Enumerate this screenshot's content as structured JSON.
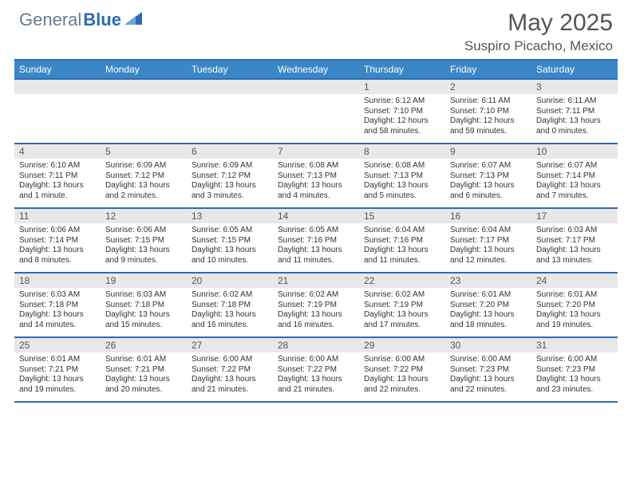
{
  "brand": {
    "general": "General",
    "blue": "Blue"
  },
  "title": {
    "month": "May 2025",
    "location": "Suspiro Picacho, Mexico"
  },
  "day_headers": [
    "Sunday",
    "Monday",
    "Tuesday",
    "Wednesday",
    "Thursday",
    "Friday",
    "Saturday"
  ],
  "colors": {
    "header_bg": "#3a87c7",
    "border": "#2d6bb0",
    "strip_bg": "#e8e8e8",
    "text": "#333333"
  },
  "weeks": [
    {
      "dates": [
        "",
        "",
        "",
        "",
        "1",
        "2",
        "3"
      ],
      "cells": [
        null,
        null,
        null,
        null,
        {
          "sunrise": "Sunrise: 6:12 AM",
          "sunset": "Sunset: 7:10 PM",
          "daylight": "Daylight: 12 hours and 58 minutes."
        },
        {
          "sunrise": "Sunrise: 6:11 AM",
          "sunset": "Sunset: 7:10 PM",
          "daylight": "Daylight: 12 hours and 59 minutes."
        },
        {
          "sunrise": "Sunrise: 6:11 AM",
          "sunset": "Sunset: 7:11 PM",
          "daylight": "Daylight: 13 hours and 0 minutes."
        }
      ]
    },
    {
      "dates": [
        "4",
        "5",
        "6",
        "7",
        "8",
        "9",
        "10"
      ],
      "cells": [
        {
          "sunrise": "Sunrise: 6:10 AM",
          "sunset": "Sunset: 7:11 PM",
          "daylight": "Daylight: 13 hours and 1 minute."
        },
        {
          "sunrise": "Sunrise: 6:09 AM",
          "sunset": "Sunset: 7:12 PM",
          "daylight": "Daylight: 13 hours and 2 minutes."
        },
        {
          "sunrise": "Sunrise: 6:09 AM",
          "sunset": "Sunset: 7:12 PM",
          "daylight": "Daylight: 13 hours and 3 minutes."
        },
        {
          "sunrise": "Sunrise: 6:08 AM",
          "sunset": "Sunset: 7:13 PM",
          "daylight": "Daylight: 13 hours and 4 minutes."
        },
        {
          "sunrise": "Sunrise: 6:08 AM",
          "sunset": "Sunset: 7:13 PM",
          "daylight": "Daylight: 13 hours and 5 minutes."
        },
        {
          "sunrise": "Sunrise: 6:07 AM",
          "sunset": "Sunset: 7:13 PM",
          "daylight": "Daylight: 13 hours and 6 minutes."
        },
        {
          "sunrise": "Sunrise: 6:07 AM",
          "sunset": "Sunset: 7:14 PM",
          "daylight": "Daylight: 13 hours and 7 minutes."
        }
      ]
    },
    {
      "dates": [
        "11",
        "12",
        "13",
        "14",
        "15",
        "16",
        "17"
      ],
      "cells": [
        {
          "sunrise": "Sunrise: 6:06 AM",
          "sunset": "Sunset: 7:14 PM",
          "daylight": "Daylight: 13 hours and 8 minutes."
        },
        {
          "sunrise": "Sunrise: 6:06 AM",
          "sunset": "Sunset: 7:15 PM",
          "daylight": "Daylight: 13 hours and 9 minutes."
        },
        {
          "sunrise": "Sunrise: 6:05 AM",
          "sunset": "Sunset: 7:15 PM",
          "daylight": "Daylight: 13 hours and 10 minutes."
        },
        {
          "sunrise": "Sunrise: 6:05 AM",
          "sunset": "Sunset: 7:16 PM",
          "daylight": "Daylight: 13 hours and 11 minutes."
        },
        {
          "sunrise": "Sunrise: 6:04 AM",
          "sunset": "Sunset: 7:16 PM",
          "daylight": "Daylight: 13 hours and 11 minutes."
        },
        {
          "sunrise": "Sunrise: 6:04 AM",
          "sunset": "Sunset: 7:17 PM",
          "daylight": "Daylight: 13 hours and 12 minutes."
        },
        {
          "sunrise": "Sunrise: 6:03 AM",
          "sunset": "Sunset: 7:17 PM",
          "daylight": "Daylight: 13 hours and 13 minutes."
        }
      ]
    },
    {
      "dates": [
        "18",
        "19",
        "20",
        "21",
        "22",
        "23",
        "24"
      ],
      "cells": [
        {
          "sunrise": "Sunrise: 6:03 AM",
          "sunset": "Sunset: 7:18 PM",
          "daylight": "Daylight: 13 hours and 14 minutes."
        },
        {
          "sunrise": "Sunrise: 6:03 AM",
          "sunset": "Sunset: 7:18 PM",
          "daylight": "Daylight: 13 hours and 15 minutes."
        },
        {
          "sunrise": "Sunrise: 6:02 AM",
          "sunset": "Sunset: 7:18 PM",
          "daylight": "Daylight: 13 hours and 16 minutes."
        },
        {
          "sunrise": "Sunrise: 6:02 AM",
          "sunset": "Sunset: 7:19 PM",
          "daylight": "Daylight: 13 hours and 16 minutes."
        },
        {
          "sunrise": "Sunrise: 6:02 AM",
          "sunset": "Sunset: 7:19 PM",
          "daylight": "Daylight: 13 hours and 17 minutes."
        },
        {
          "sunrise": "Sunrise: 6:01 AM",
          "sunset": "Sunset: 7:20 PM",
          "daylight": "Daylight: 13 hours and 18 minutes."
        },
        {
          "sunrise": "Sunrise: 6:01 AM",
          "sunset": "Sunset: 7:20 PM",
          "daylight": "Daylight: 13 hours and 19 minutes."
        }
      ]
    },
    {
      "dates": [
        "25",
        "26",
        "27",
        "28",
        "29",
        "30",
        "31"
      ],
      "cells": [
        {
          "sunrise": "Sunrise: 6:01 AM",
          "sunset": "Sunset: 7:21 PM",
          "daylight": "Daylight: 13 hours and 19 minutes."
        },
        {
          "sunrise": "Sunrise: 6:01 AM",
          "sunset": "Sunset: 7:21 PM",
          "daylight": "Daylight: 13 hours and 20 minutes."
        },
        {
          "sunrise": "Sunrise: 6:00 AM",
          "sunset": "Sunset: 7:22 PM",
          "daylight": "Daylight: 13 hours and 21 minutes."
        },
        {
          "sunrise": "Sunrise: 6:00 AM",
          "sunset": "Sunset: 7:22 PM",
          "daylight": "Daylight: 13 hours and 21 minutes."
        },
        {
          "sunrise": "Sunrise: 6:00 AM",
          "sunset": "Sunset: 7:22 PM",
          "daylight": "Daylight: 13 hours and 22 minutes."
        },
        {
          "sunrise": "Sunrise: 6:00 AM",
          "sunset": "Sunset: 7:23 PM",
          "daylight": "Daylight: 13 hours and 22 minutes."
        },
        {
          "sunrise": "Sunrise: 6:00 AM",
          "sunset": "Sunset: 7:23 PM",
          "daylight": "Daylight: 13 hours and 23 minutes."
        }
      ]
    }
  ]
}
